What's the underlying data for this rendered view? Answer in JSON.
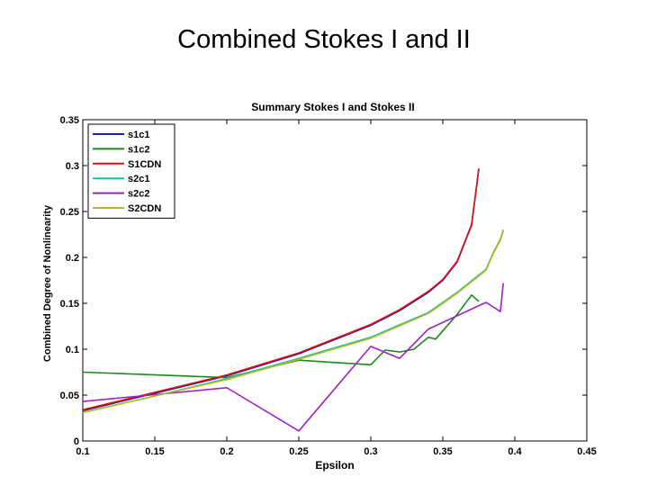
{
  "slide": {
    "title": "Combined Stokes I and II"
  },
  "chart_data": {
    "type": "line",
    "title": "Summary Stokes I and Stokes II",
    "xlabel": "Epsilon",
    "ylabel": "Combined Degree of Nonlinearity",
    "xlim": [
      0.1,
      0.45
    ],
    "ylim": [
      0,
      0.35
    ],
    "x_ticks": [
      "0.1",
      "0.15",
      "0.2",
      "0.25",
      "0.3",
      "0.35",
      "0.4",
      "0.45"
    ],
    "y_ticks": [
      "0",
      "0.05",
      "0.1",
      "0.15",
      "0.2",
      "0.25",
      "0.3",
      "0.35"
    ],
    "grid": false,
    "legend_position": "top-left",
    "series": [
      {
        "name": "s1c1",
        "color": "#1f1fb0",
        "points": [
          [
            0.1,
            0.033
          ],
          [
            0.15,
            0.052
          ],
          [
            0.2,
            0.071
          ],
          [
            0.25,
            0.095
          ],
          [
            0.3,
            0.126
          ],
          [
            0.32,
            0.142
          ],
          [
            0.34,
            0.162
          ],
          [
            0.35,
            0.175
          ],
          [
            0.36,
            0.195
          ],
          [
            0.37,
            0.235
          ],
          [
            0.375,
            0.296
          ]
        ]
      },
      {
        "name": "s1c2",
        "color": "#1a8a1a",
        "points": [
          [
            0.1,
            0.075
          ],
          [
            0.2,
            0.069
          ],
          [
            0.25,
            0.088
          ],
          [
            0.3,
            0.083
          ],
          [
            0.31,
            0.099
          ],
          [
            0.32,
            0.097
          ],
          [
            0.33,
            0.1
          ],
          [
            0.34,
            0.113
          ],
          [
            0.345,
            0.111
          ],
          [
            0.36,
            0.138
          ],
          [
            0.37,
            0.159
          ],
          [
            0.375,
            0.152
          ]
        ]
      },
      {
        "name": "S1CDN",
        "color": "#e01010",
        "points": [
          [
            0.1,
            0.034
          ],
          [
            0.15,
            0.053
          ],
          [
            0.2,
            0.072
          ],
          [
            0.25,
            0.096
          ],
          [
            0.3,
            0.127
          ],
          [
            0.32,
            0.143
          ],
          [
            0.34,
            0.163
          ],
          [
            0.35,
            0.176
          ],
          [
            0.36,
            0.196
          ],
          [
            0.37,
            0.236
          ],
          [
            0.375,
            0.297
          ]
        ]
      },
      {
        "name": "s2c1",
        "color": "#10c0c0",
        "points": [
          [
            0.1,
            0.031
          ],
          [
            0.15,
            0.049
          ],
          [
            0.2,
            0.068
          ],
          [
            0.25,
            0.09
          ],
          [
            0.3,
            0.113
          ],
          [
            0.34,
            0.14
          ],
          [
            0.36,
            0.162
          ],
          [
            0.38,
            0.187
          ],
          [
            0.385,
            0.205
          ],
          [
            0.39,
            0.22
          ],
          [
            0.392,
            0.23
          ]
        ]
      },
      {
        "name": "s2c2",
        "color": "#a020c0",
        "points": [
          [
            0.1,
            0.043
          ],
          [
            0.2,
            0.058
          ],
          [
            0.25,
            0.011
          ],
          [
            0.3,
            0.103
          ],
          [
            0.32,
            0.09
          ],
          [
            0.34,
            0.122
          ],
          [
            0.38,
            0.151
          ],
          [
            0.39,
            0.141
          ],
          [
            0.392,
            0.172
          ]
        ]
      },
      {
        "name": "S2CDN",
        "color": "#b8b818",
        "points": [
          [
            0.1,
            0.031
          ],
          [
            0.15,
            0.049
          ],
          [
            0.2,
            0.067
          ],
          [
            0.25,
            0.089
          ],
          [
            0.3,
            0.112
          ],
          [
            0.34,
            0.139
          ],
          [
            0.36,
            0.161
          ],
          [
            0.38,
            0.186
          ],
          [
            0.385,
            0.204
          ],
          [
            0.39,
            0.219
          ],
          [
            0.392,
            0.229
          ]
        ]
      }
    ]
  }
}
